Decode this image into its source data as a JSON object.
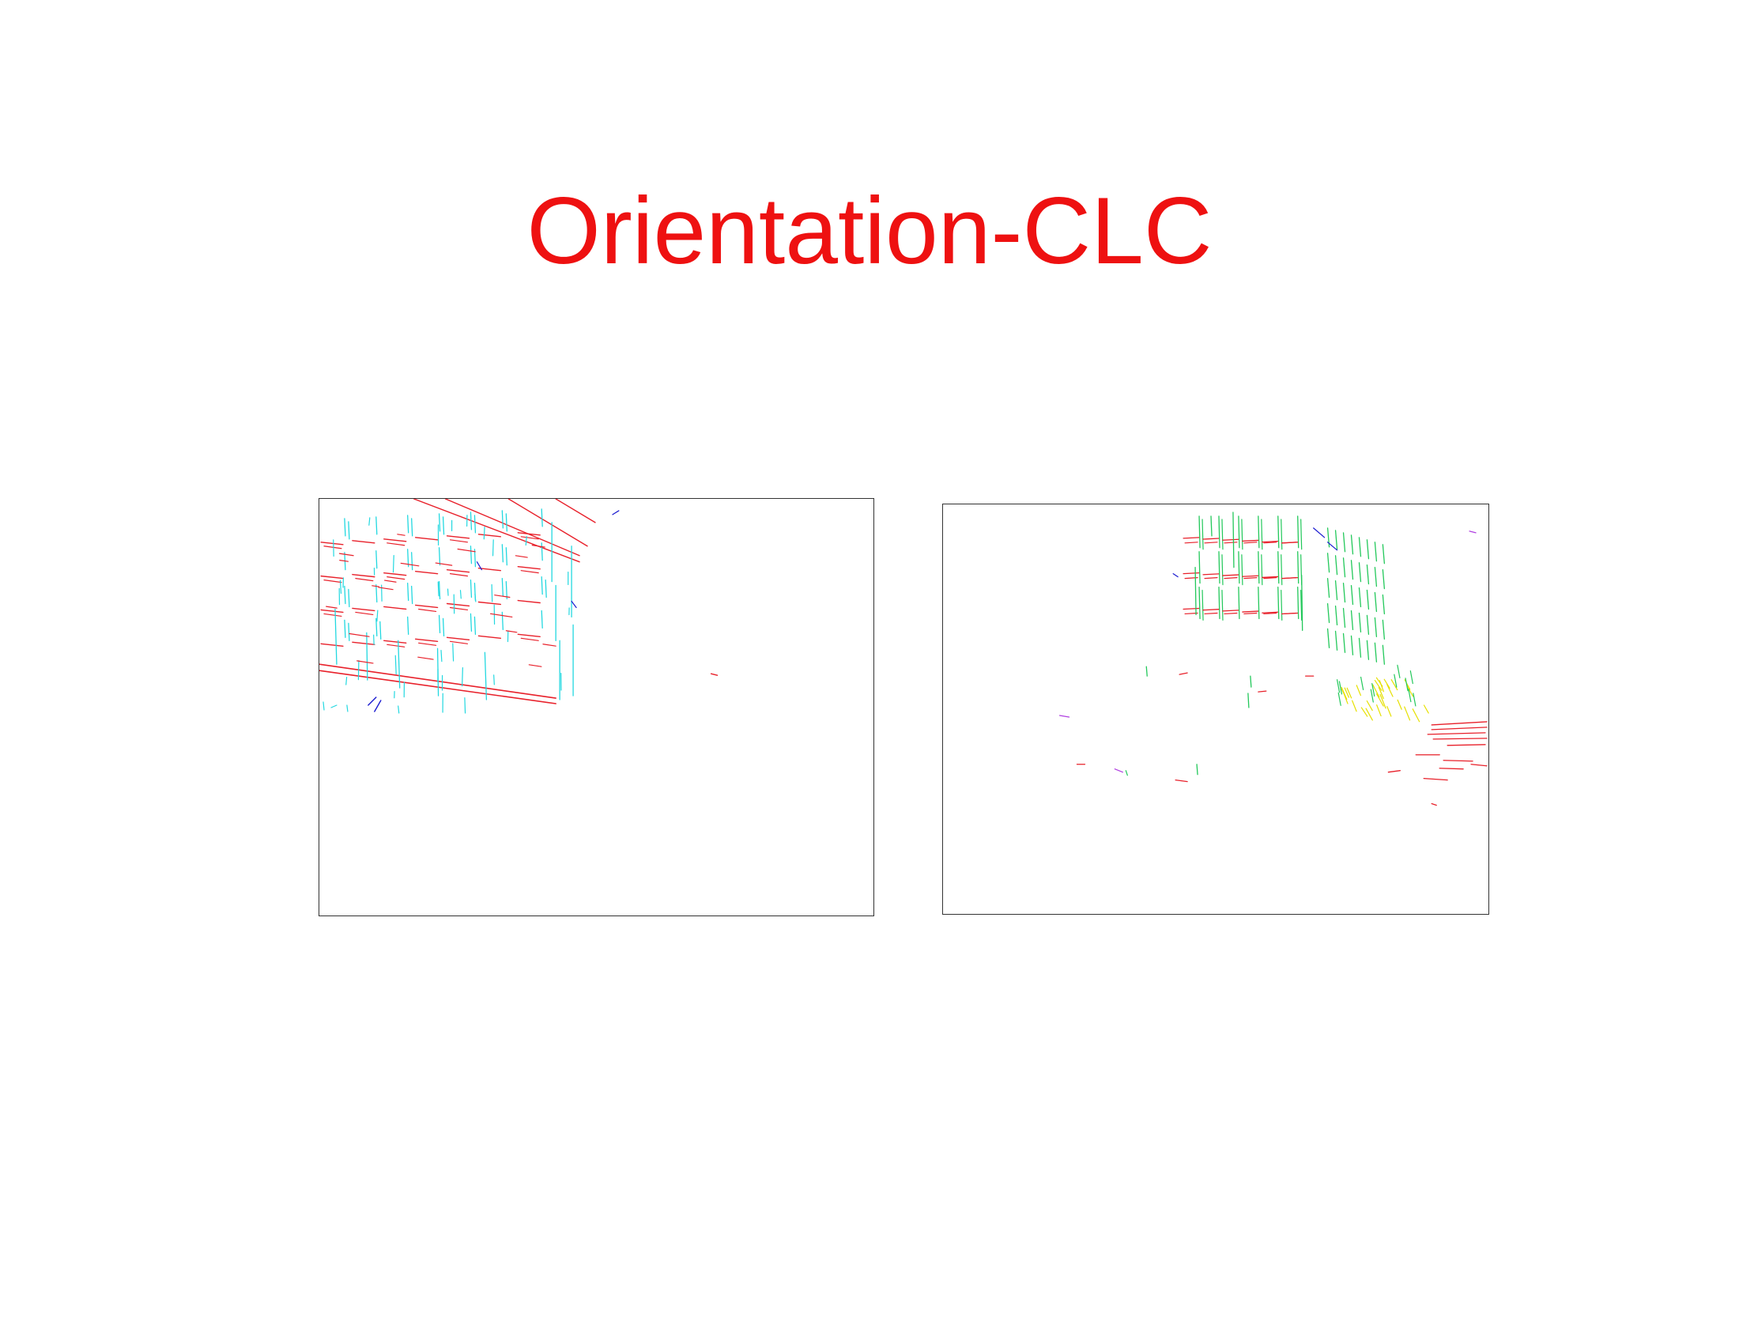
{
  "slide": {
    "title": "Orientation-CLC",
    "title_color": "#ee1111"
  },
  "orientation_colors": {
    "horizontal": "#e8202a",
    "vertical_left": "#22d8e0",
    "vertical_right": "#22c85a",
    "oblique_a": "#1a1ad0",
    "oblique_b": "#e6e000",
    "oblique_c": "#b040e0"
  },
  "panels": [
    {
      "name": "left-orientation-map"
    },
    {
      "name": "right-orientation-map"
    }
  ]
}
